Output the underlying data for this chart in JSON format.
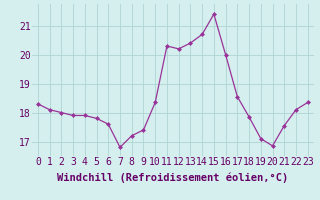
{
  "x": [
    0,
    1,
    2,
    3,
    4,
    5,
    6,
    7,
    8,
    9,
    10,
    11,
    12,
    13,
    14,
    15,
    16,
    17,
    18,
    19,
    20,
    21,
    22,
    23
  ],
  "y": [
    18.3,
    18.1,
    18.0,
    17.9,
    17.9,
    17.8,
    17.6,
    16.8,
    17.2,
    17.4,
    18.35,
    20.3,
    20.2,
    20.4,
    20.7,
    21.4,
    20.0,
    18.55,
    17.85,
    17.1,
    16.85,
    17.55,
    18.1,
    18.35
  ],
  "line_color": "#993399",
  "marker": "D",
  "marker_size": 2.0,
  "bg_color": "#d5eeee",
  "grid_color": "#aed4d4",
  "xlabel": "Windchill (Refroidissement éolien,°C)",
  "xlabel_fontsize": 7.5,
  "tick_fontsize": 7.0,
  "ylim": [
    16.5,
    21.75
  ],
  "yticks": [
    17,
    18,
    19,
    20,
    21
  ],
  "xticks": [
    0,
    1,
    2,
    3,
    4,
    5,
    6,
    7,
    8,
    9,
    10,
    11,
    12,
    13,
    14,
    15,
    16,
    17,
    18,
    19,
    20,
    21,
    22,
    23
  ]
}
